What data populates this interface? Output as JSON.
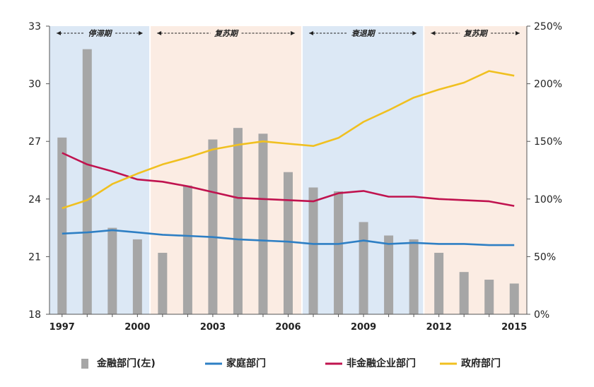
{
  "chart_data": {
    "type": "bar",
    "x": [
      1997,
      1998,
      1999,
      2000,
      2001,
      2002,
      2003,
      2004,
      2005,
      2006,
      2007,
      2008,
      2009,
      2010,
      2011,
      2012,
      2013,
      2014,
      2015
    ],
    "x_tick_labels": [
      "1997",
      "2000",
      "2003",
      "2006",
      "2009",
      "2012",
      "2015"
    ],
    "x_tick_years": [
      1997,
      2000,
      2003,
      2006,
      2009,
      2012,
      2015
    ],
    "left_axis": {
      "ylim": [
        18,
        33
      ],
      "ticks": [
        "18",
        "21",
        "24",
        "27",
        "30",
        "33"
      ],
      "tick_values": [
        18,
        21,
        24,
        27,
        30,
        33
      ]
    },
    "right_axis": {
      "ylim": [
        0,
        250
      ],
      "ticks": [
        "0%",
        "50%",
        "100%",
        "150%",
        "200%",
        "250%"
      ],
      "tick_values": [
        0,
        50,
        100,
        150,
        200,
        250
      ]
    },
    "series": [
      {
        "name": "金融部门(左)",
        "kind": "bar",
        "axis": "left",
        "color": "#a6a6a6",
        "values": [
          27.2,
          31.8,
          22.5,
          21.9,
          21.2,
          24.7,
          27.1,
          27.7,
          27.4,
          25.4,
          24.6,
          24.4,
          22.8,
          22.1,
          21.9,
          21.2,
          20.2,
          19.8,
          19.6
        ]
      },
      {
        "name": "家庭部门",
        "kind": "line",
        "axis": "right",
        "color": "#2e7fc4",
        "values": [
          70,
          71,
          73,
          71,
          69,
          68,
          67,
          65,
          64,
          63,
          61,
          61,
          64,
          61,
          62,
          61,
          61,
          60,
          60
        ]
      },
      {
        "name": "非金融企业部门",
        "kind": "line",
        "axis": "right",
        "color": "#c0134f",
        "values": [
          140,
          130,
          124,
          117,
          115,
          111,
          106,
          101,
          100,
          99,
          98,
          105,
          107,
          102,
          102,
          100,
          99,
          98,
          94
        ]
      },
      {
        "name": "政府部门",
        "kind": "line",
        "axis": "right",
        "color": "#f0c020",
        "values": [
          92,
          99,
          113,
          122,
          130,
          136,
          143,
          147,
          150,
          148,
          146,
          153,
          167,
          177,
          188,
          195,
          201,
          211,
          207
        ]
      }
    ],
    "periods": [
      {
        "label": "停滞期",
        "start": 1996.5,
        "end": 2000.5,
        "color": "#dce8f5"
      },
      {
        "label": "复苏期",
        "start": 2000.5,
        "end": 2006.55,
        "color": "#fbece3"
      },
      {
        "label": "衰退期",
        "start": 2006.55,
        "end": 2011.4,
        "color": "#dce8f5"
      },
      {
        "label": "复苏期",
        "start": 2011.4,
        "end": 2015.5,
        "color": "#fbece3"
      }
    ],
    "legend_position": "bottom",
    "grid": false
  }
}
